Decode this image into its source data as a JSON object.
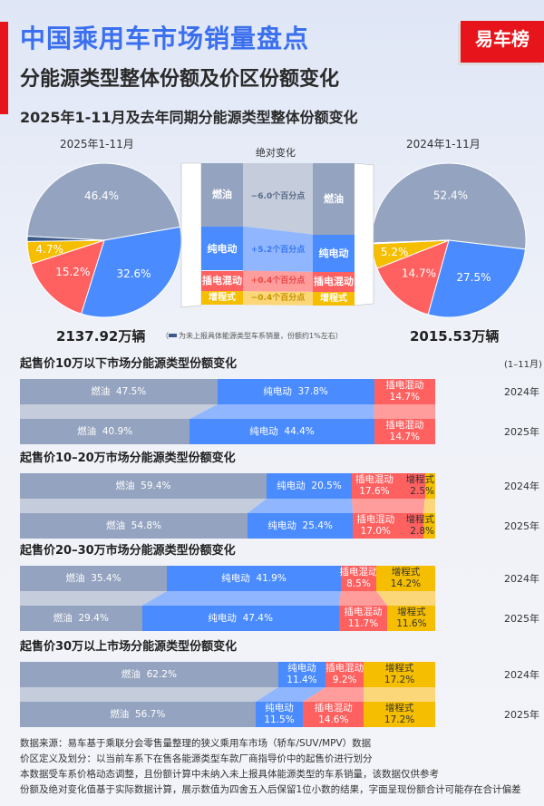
{
  "header": {
    "title": "中国乘用车市场销量盘点",
    "subtitle": "分能源类型整体份额及价区份额变化",
    "logo": "易车榜"
  },
  "colors": {
    "fuel": "#94a3bf",
    "bev": "#4a8bff",
    "phev": "#ff6060",
    "erev": "#f5be00",
    "unknown": "#3d5a8a",
    "fuel_light": "#c5cddd",
    "bev_light": "#8fb6ff",
    "phev_light": "#ff9c9c",
    "erev_light": "#fbd77a"
  },
  "chart_data": [
    {
      "type": "pie",
      "title": "2025年1-11月及去年同期分能源类型整体份额变化",
      "series": [
        {
          "name": "2025年1-11月",
          "total": "2137.92万辆",
          "categories": [
            "燃油",
            "纯电动",
            "插电混动",
            "增程式"
          ],
          "values": [
            46.4,
            32.6,
            15.2,
            4.7
          ]
        },
        {
          "name": "2024年1-11月",
          "total": "2015.53万辆",
          "categories": [
            "燃油",
            "纯电动",
            "插电混动",
            "增程式"
          ],
          "values": [
            52.4,
            27.5,
            14.7,
            5.2
          ]
        }
      ],
      "change": {
        "title": "绝对变化",
        "items": [
          {
            "name": "燃油",
            "text": "−6.0个百分点",
            "value": -6.0
          },
          {
            "name": "纯电动",
            "text": "+5.2个百分点",
            "value": 5.2
          },
          {
            "name": "插电混动",
            "text": "+0.4个百分点",
            "value": 0.4
          },
          {
            "name": "增程式",
            "text": "−0.4个百分点",
            "value": -0.4
          }
        ]
      },
      "note": "为未上报具体能源类型车系销量，份额约1%左右"
    },
    {
      "type": "bar",
      "stacked": true,
      "orientation": "horizontal",
      "period": "(1–11月)",
      "blocks": [
        {
          "title": "起售价10万以下市场分能源类型份额变化",
          "categories": [
            "燃油",
            "纯电动",
            "插电混动",
            "增程式"
          ],
          "series": [
            {
              "name": "2024年",
              "values": [
                47.5,
                37.8,
                14.7,
                0
              ]
            },
            {
              "name": "2025年",
              "values": [
                40.9,
                44.4,
                14.7,
                0
              ]
            }
          ]
        },
        {
          "title": "起售价10–20万市场分能源类型份额变化",
          "categories": [
            "燃油",
            "纯电动",
            "插电混动",
            "增程式"
          ],
          "series": [
            {
              "name": "2024年",
              "values": [
                59.4,
                20.5,
                17.6,
                2.5
              ]
            },
            {
              "name": "2025年",
              "values": [
                54.8,
                25.4,
                17.0,
                2.8
              ]
            }
          ]
        },
        {
          "title": "起售价20–30万市场分能源类型份额变化",
          "categories": [
            "燃油",
            "纯电动",
            "插电混动",
            "增程式"
          ],
          "series": [
            {
              "name": "2024年",
              "values": [
                35.4,
                41.9,
                8.5,
                14.2
              ]
            },
            {
              "name": "2025年",
              "values": [
                29.4,
                47.4,
                11.7,
                11.6
              ]
            }
          ]
        },
        {
          "title": "起售价30万以上市场分能源类型份额变化",
          "categories": [
            "燃油",
            "纯电动",
            "插电混动",
            "增程式"
          ],
          "series": [
            {
              "name": "2024年",
              "values": [
                62.2,
                11.4,
                9.2,
                17.2
              ]
            },
            {
              "name": "2025年",
              "values": [
                56.7,
                11.5,
                14.6,
                17.2
              ]
            }
          ]
        }
      ]
    }
  ],
  "footer": [
    "数据来源：易车基于乘联分会零售量整理的狭义乘用车市场（轿车/SUV/MPV）数据",
    "价区定义及划分：以当前车系下在售各能源类型车款厂商指导价中的起售价进行划分",
    "本数据受车系价格动态调整，且份额计算中未纳入未上报具体能源类型的车系销量，该数据仅供参考",
    "份额及绝对变化值基于实际数据计算，展示数值为四舍五入后保留1位小数的结果，字面呈现份额合计可能存在合计偏差"
  ]
}
